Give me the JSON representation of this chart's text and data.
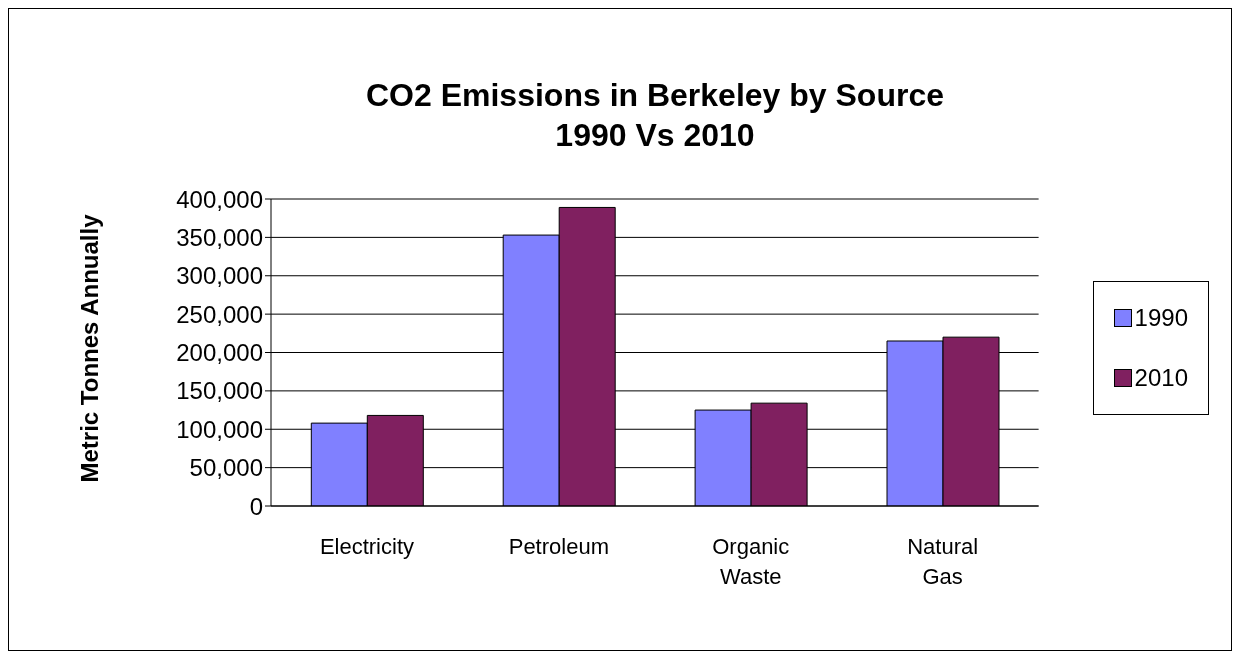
{
  "chart_data": {
    "type": "bar",
    "title": "CO2 Emissions in Berkeley by Source\n1990 Vs 2010",
    "ylabel": "Metric Tonnes Annually",
    "categories": [
      "Electricity",
      "Petroleum",
      "Organic Waste",
      "Natural Gas"
    ],
    "series": [
      {
        "name": "1990",
        "color": "#8080ff",
        "values": [
          108000,
          353000,
          125000,
          215000
        ]
      },
      {
        "name": "2010",
        "color": "#802060",
        "values": [
          118000,
          389000,
          134000,
          220000
        ]
      }
    ],
    "ylim": [
      0,
      400000
    ],
    "yticks": [
      0,
      {
        "value": 50000,
        "label": "50,000"
      },
      {
        "value": 100000,
        "label": "100,000"
      },
      {
        "value": 150000,
        "label": "150,000"
      },
      {
        "value": 200000,
        "label": "200,000"
      },
      {
        "value": 250000,
        "label": "250,000"
      },
      {
        "value": 300000,
        "label": "300,000"
      },
      {
        "value": 350000,
        "label": "350,000"
      },
      {
        "value": 400000,
        "label": "400,000"
      }
    ],
    "grid": "y",
    "legend": "right"
  }
}
